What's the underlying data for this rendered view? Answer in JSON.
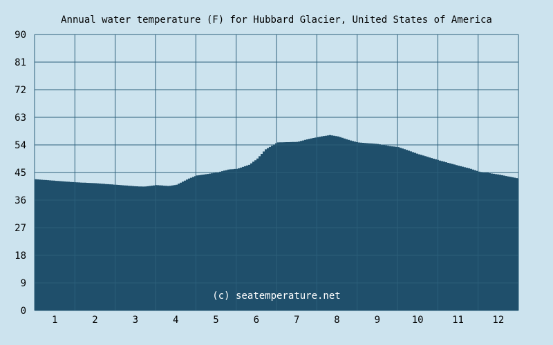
{
  "colors": {
    "background": "#cce3ee",
    "area_fill": "#1f4f6b",
    "grid": "#2c5f7a",
    "text": "#000000",
    "watermark": "#ffffff"
  },
  "chart_data": {
    "type": "area",
    "title": "Annual water temperature (F) for Hubbard Glacier, United States of America",
    "xlabel": "",
    "ylabel": "",
    "unit": "F",
    "ylim": [
      0,
      90
    ],
    "xlim": [
      0.5,
      12.5
    ],
    "y_ticks": [
      0,
      9,
      18,
      27,
      36,
      45,
      54,
      63,
      72,
      81,
      90
    ],
    "x_ticks": [
      1,
      2,
      3,
      4,
      5,
      6,
      7,
      8,
      9,
      10,
      11,
      12
    ],
    "grid": true,
    "legend": "none",
    "watermark": "(c) seatemperature.net",
    "series": [
      {
        "x": [
          0.5,
          1.0,
          1.5,
          2.0,
          2.5,
          3.0,
          3.2,
          3.5,
          3.8,
          4.0,
          4.3,
          4.5,
          5.0,
          5.3,
          5.5,
          5.8,
          6.0,
          6.2,
          6.5,
          7.0,
          7.3,
          7.6,
          7.8,
          8.0,
          8.3,
          8.5,
          9.0,
          9.3,
          9.5,
          10.0,
          10.5,
          11.0,
          11.3,
          11.5,
          12.0,
          12.5
        ],
        "y": [
          42.8,
          42.3,
          41.8,
          41.5,
          41.0,
          40.5,
          40.4,
          40.9,
          40.6,
          41.0,
          43.0,
          44.0,
          45.0,
          46.0,
          46.2,
          47.5,
          49.5,
          52.5,
          54.8,
          55.0,
          56.0,
          56.8,
          57.2,
          56.8,
          55.5,
          54.8,
          54.3,
          53.6,
          53.3,
          51.0,
          49.0,
          47.2,
          46.2,
          45.3,
          44.3,
          43.0
        ]
      }
    ]
  }
}
